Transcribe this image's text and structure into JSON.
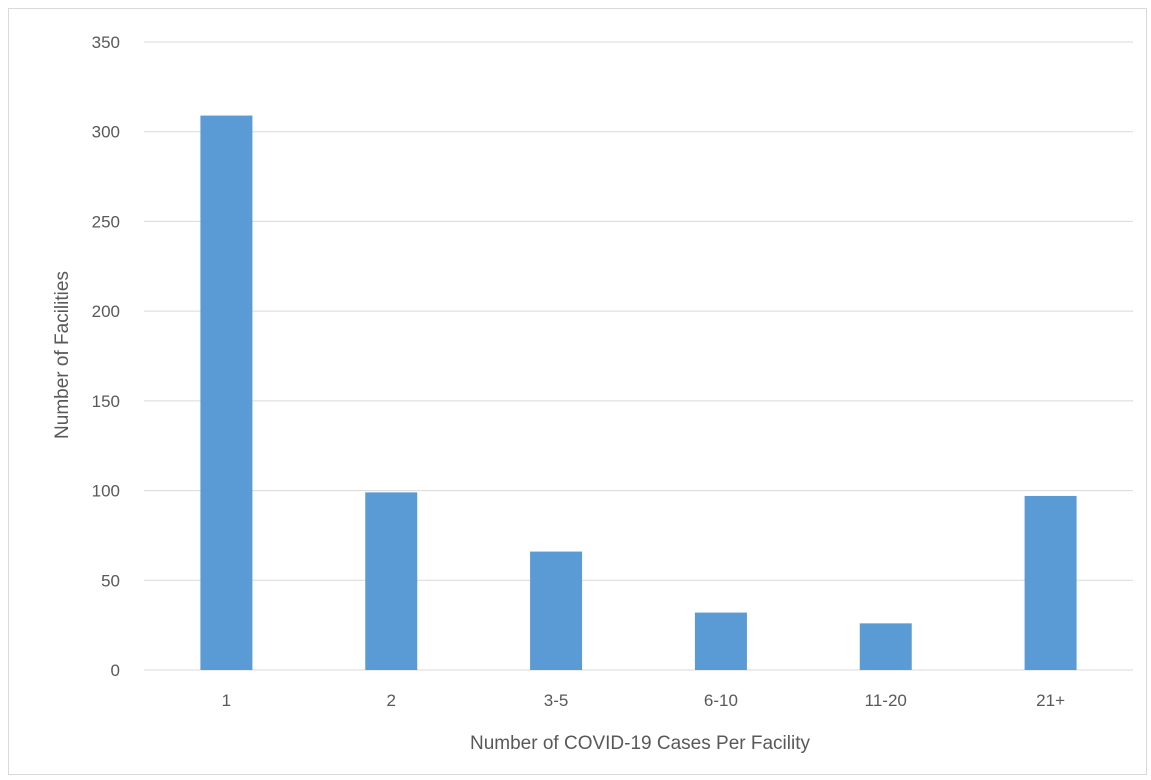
{
  "chart_data": {
    "type": "bar",
    "title": "",
    "xlabel": "Number of COVID-19 Cases Per Facility",
    "ylabel": "Number of Facilities",
    "categories": [
      "1",
      "2",
      "3-5",
      "6-10",
      "11-20",
      "21+"
    ],
    "values": [
      309,
      99,
      66,
      32,
      26,
      97
    ],
    "ylim": [
      0,
      350
    ],
    "yticks": [
      "0",
      "50",
      "100",
      "150",
      "200",
      "250",
      "300",
      "350"
    ],
    "grid": true,
    "legend": "none",
    "bar_color": "#5b9bd5",
    "grid_color": "#d9d9d9"
  }
}
